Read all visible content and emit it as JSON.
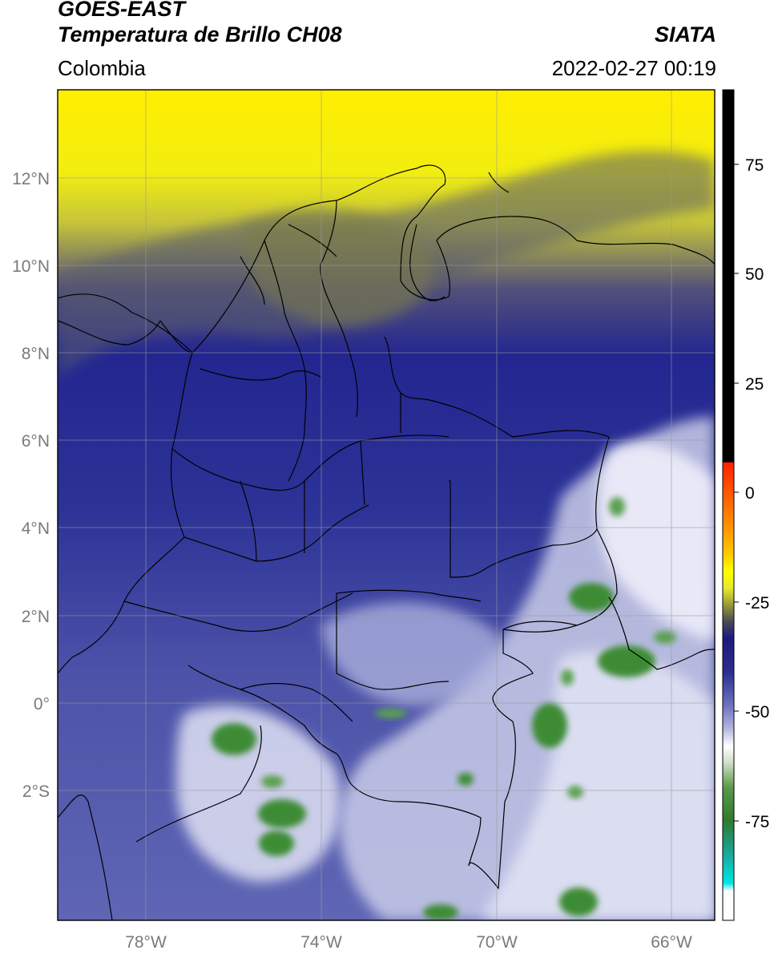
{
  "header": {
    "satellite": "GOES-EAST",
    "product": "Temperatura de Brillo CH08",
    "region": "Colombia",
    "organization": "SIATA",
    "datetime": "2022-02-27 00:19"
  },
  "map": {
    "lat_ticks": [
      "12°N",
      "10°N",
      "8°N",
      "6°N",
      "4°N",
      "2°N",
      "0°",
      "2°S"
    ],
    "lon_ticks": [
      "78°W",
      "74°W",
      "70°W",
      "66°W"
    ],
    "extent": {
      "lon": [
        -80,
        -65
      ],
      "lat": [
        -5.2,
        14
      ]
    }
  },
  "colorbar": {
    "ticks": [
      "75",
      "50",
      "25",
      "0",
      "-25",
      "-50",
      "-75"
    ],
    "range": [
      -92,
      90
    ],
    "colors": {
      "black": "#000000",
      "red": "#ff2200",
      "orange": "#ff9900",
      "yellow": "#ffff00",
      "olive": "#6b6b2e",
      "navy": "#1b1b7e",
      "lavender": "#9aa0d4",
      "white": "#ffffff",
      "green": "#3b8a2e",
      "teal": "#1aa89a",
      "cyan": "#00e5e5"
    }
  }
}
